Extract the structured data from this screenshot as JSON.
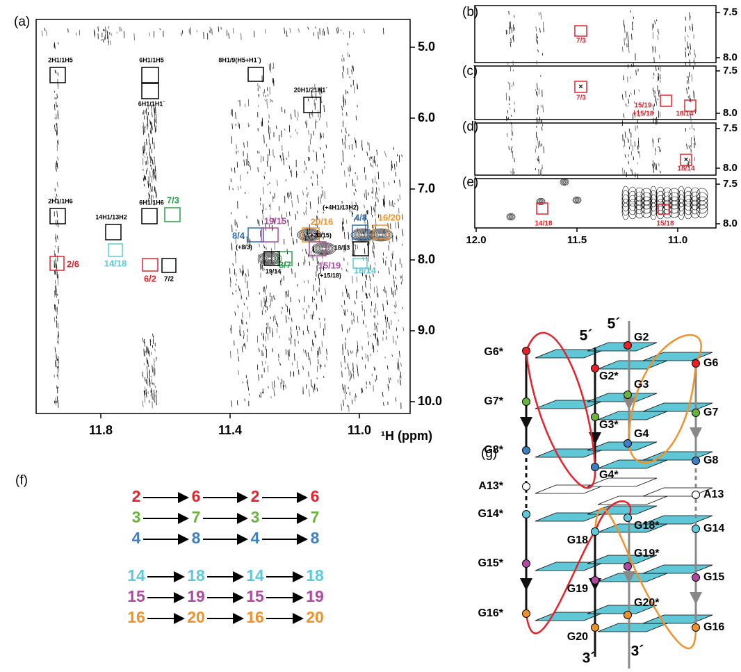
{
  "panel_labels": [
    "(a)",
    "(b)",
    "(c)",
    "(d)",
    "(e)",
    "(f)",
    "(g)"
  ],
  "spectrum_a": {
    "yticks": [
      {
        "value": 5,
        "label": "5.0"
      },
      {
        "value": 6,
        "label": "6.0"
      },
      {
        "value": 7,
        "label": "7.0"
      },
      {
        "value": 8,
        "label": "8.0"
      },
      {
        "value": 9,
        "label": "9.0"
      },
      {
        "value": 10,
        "label": "10.0"
      }
    ],
    "xticks": [
      {
        "value": 11.8,
        "label": "11.8"
      },
      {
        "value": 11.4,
        "label": "11.4"
      },
      {
        "value": 11,
        "label": "11.0"
      }
    ],
    "x_axis_label": "¹H (ppm)",
    "annotations": [
      {
        "text": "2H1/1H5",
        "color": "#000000"
      },
      {
        "text": "6H1/1H5",
        "color": "#000000"
      },
      {
        "text": "6H1/1H1´",
        "color": "#000000"
      },
      {
        "text": "8H1/9(H5+H1´)",
        "color": "#000000"
      },
      {
        "text": "20H1/21H1´",
        "color": "#000000"
      },
      {
        "text": "2H1/1H6",
        "color": "#000000"
      },
      {
        "text": "6H1/1H6",
        "color": "#000000"
      },
      {
        "text": "14H1/13H2",
        "color": "#000000"
      },
      {
        "text": "7/3",
        "color": "#27a046"
      },
      {
        "text": "14/18",
        "color": "#5ec8dc"
      },
      {
        "text": "6/2",
        "color": "#e8202a"
      },
      {
        "text": "7/2",
        "color": "#000000"
      },
      {
        "text": "2/6",
        "color": "#e8202a"
      },
      {
        "text": "8/4",
        "color": "#2d6db4"
      },
      {
        "text": "(+8/3)",
        "color": "#000000"
      },
      {
        "text": "19/15",
        "color": "#b04aa0"
      },
      {
        "text": "3/7",
        "color": "#27a046"
      },
      {
        "text": "19/14",
        "color": "#000000"
      },
      {
        "text": "20/16",
        "color": "#f0912a"
      },
      {
        "text": "(+20/15)",
        "color": "#000000"
      },
      {
        "text": "(+4H1/13H2)",
        "color": "#000000"
      },
      {
        "text": "4/8",
        "color": "#2d6db4"
      },
      {
        "text": "16/20",
        "color": "#f0912a"
      },
      {
        "text": "18/13",
        "color": "#000000"
      },
      {
        "text": "15/19",
        "color": "#b04aa0"
      },
      {
        "text": "(+15/18)",
        "color": "#000000"
      },
      {
        "text": "18/14",
        "color": "#5ec8dc"
      }
    ]
  },
  "spectra_be": {
    "yticks": [
      {
        "value": 7.5,
        "label": "7.5"
      },
      {
        "value": 8,
        "label": "8.0"
      }
    ],
    "xticks": [
      {
        "value": 12,
        "label": "12.0"
      },
      {
        "value": 11.5,
        "label": "11.5"
      },
      {
        "value": 11,
        "label": "11.0"
      }
    ],
    "annotations": [
      "7/3",
      "7/3",
      "15/19",
      "+15/18",
      "18/14",
      "18/14",
      "14/18",
      "15/18"
    ],
    "color": "#e8202a"
  },
  "sequences": [
    {
      "color": "#e8202a",
      "steps": [
        "2",
        "6",
        "2",
        "6"
      ]
    },
    {
      "color": "#6ab43e",
      "steps": [
        "3",
        "7",
        "3",
        "7"
      ]
    },
    {
      "color": "#3d7fc2",
      "steps": [
        "4",
        "8",
        "4",
        "8"
      ]
    },
    {
      "color": "#5ec8dc",
      "steps": [
        "14",
        "18",
        "14",
        "18"
      ]
    },
    {
      "color": "#b04aa0",
      "steps": [
        "15",
        "19",
        "15",
        "19"
      ]
    },
    {
      "color": "#f0912a",
      "steps": [
        "16",
        "20",
        "16",
        "20"
      ]
    }
  ],
  "diagram": {
    "labels": [
      "G6*",
      "G2",
      "G6",
      "G2*",
      "G3",
      "G7*",
      "G7",
      "G3*",
      "G4",
      "G8*",
      "G8",
      "G4*",
      "A13*",
      "A13",
      "G14*",
      "G18*",
      "G14",
      "G18",
      "G19*",
      "G15*",
      "G15",
      "G19",
      "G20*",
      "G16*",
      "G16",
      "G20"
    ],
    "strand_ends": [
      "5´",
      "5´",
      "3´",
      "3´"
    ]
  }
}
